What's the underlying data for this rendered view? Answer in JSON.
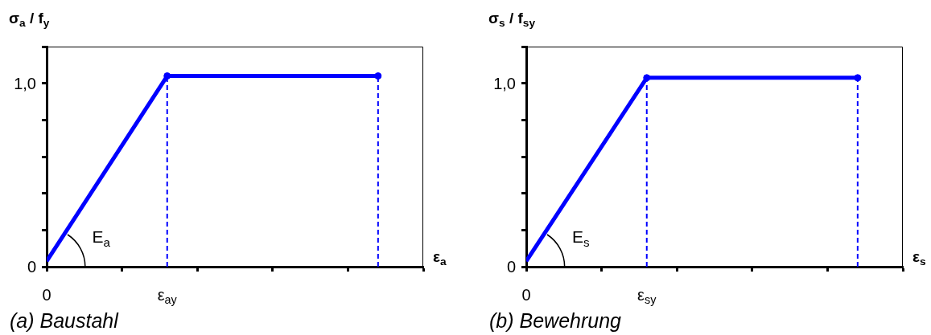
{
  "chart_data": [
    {
      "type": "line",
      "title": "(a) Baustahl",
      "xlabel": "ε$_{a}$",
      "ylabel": "σ$_{a}$ / f$_{y}$",
      "line_style": "solid",
      "marker": "none",
      "legend": false,
      "categories": [
        "0",
        null,
        null,
        null,
        null,
        null,
        null,
        null,
        "ε$_{ay}$",
        null,
        null,
        null,
        null,
        null,
        null,
        null,
        null,
        null,
        null,
        null,
        null,
        null,
        null,
        null,
        null,
        null
      ],
      "series": [
        {
          "color": "#0000ff",
          "values": [
            0.03,
            null,
            null,
            null,
            null,
            null,
            null,
            null,
            1.04,
            null,
            null,
            null,
            null,
            null,
            null,
            null,
            null,
            null,
            null,
            null,
            null,
            null,
            1.04,
            null,
            null,
            null
          ]
        },
        {
          "type": "lollipop",
          "color": "#0000ff",
          "line_style": "dashed",
          "marker": "circle",
          "values": [
            null,
            null,
            null,
            null,
            null,
            null,
            null,
            null,
            1.04,
            null,
            null,
            null,
            null,
            null,
            null,
            null,
            null,
            null,
            null,
            null,
            null,
            null,
            1.04,
            null,
            null,
            null
          ]
        }
      ],
      "ylim": [
        0,
        1.2
      ],
      "yticks": [
        0,
        {
          "value": 0.2,
          "label": null
        },
        {
          "value": 0.4,
          "label": null
        },
        {
          "value": 0.6,
          "label": null
        },
        {
          "value": 0.8,
          "label": null
        },
        {
          "value": 1,
          "label": "1,0"
        },
        {
          "value": 1.2,
          "label": null
        }
      ],
      "annotations": [
        "E$_{a}$"
      ]
    },
    {
      "type": "line",
      "title": "(b) Bewehrung",
      "xlabel": "ε$_{s}$",
      "ylabel": "σ$_{s}$ / f$_{sy}$",
      "line_style": "solid",
      "marker": "none",
      "legend": false,
      "categories": [
        "0",
        null,
        null,
        null,
        null,
        null,
        null,
        null,
        "ε$_{sy}$",
        null,
        null,
        null,
        null,
        null,
        null,
        null,
        null,
        null,
        null,
        null,
        null,
        null,
        null,
        null,
        null,
        null
      ],
      "series": [
        {
          "color": "#0000ff",
          "values": [
            0.03,
            null,
            null,
            null,
            null,
            null,
            null,
            null,
            1.03,
            null,
            null,
            null,
            null,
            null,
            null,
            null,
            null,
            null,
            null,
            null,
            null,
            null,
            1.03,
            null,
            null,
            null
          ]
        },
        {
          "type": "lollipop",
          "color": "#0000ff",
          "line_style": "dashed",
          "marker": "circle",
          "values": [
            null,
            null,
            null,
            null,
            null,
            null,
            null,
            null,
            1.03,
            null,
            null,
            null,
            null,
            null,
            null,
            null,
            null,
            null,
            null,
            null,
            null,
            null,
            1.03,
            null,
            null,
            null
          ]
        }
      ],
      "ylim": [
        0,
        1.2
      ],
      "yticks": [
        0,
        {
          "value": 0.2,
          "label": null
        },
        {
          "value": 0.4,
          "label": null
        },
        {
          "value": 0.6,
          "label": null
        },
        {
          "value": 0.8,
          "label": null
        },
        {
          "value": 1,
          "label": "1,0"
        },
        {
          "value": 1.2,
          "label": null
        }
      ],
      "annotations": [
        "E$_{s}$"
      ]
    }
  ]
}
